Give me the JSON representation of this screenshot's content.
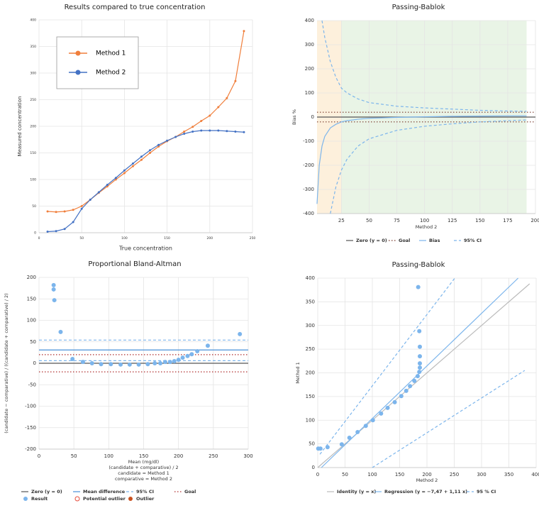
{
  "chart_data": [
    {
      "type": "line",
      "title": "Results compared to true concentration",
      "xlabel": "True concentration",
      "ylabel": "Measured concentration",
      "xlim": [
        0,
        250
      ],
      "ylim": [
        0,
        400
      ],
      "xticks": [
        0,
        50,
        100,
        150,
        200,
        250
      ],
      "yticks": [
        0,
        50,
        100,
        150,
        200,
        250,
        300,
        350,
        400
      ],
      "grid": true,
      "legend": "upper left",
      "reference_lines": [],
      "series": [
        {
          "name": "Method 1",
          "type": "line",
          "color": "#f07f3c",
          "style": "solid",
          "markers": true,
          "lines": [
            {
              "x": [
                10,
                20,
                30,
                40,
                50,
                60,
                70,
                80,
                90,
                100,
                110,
                120,
                130,
                140,
                150,
                160,
                170,
                180,
                190,
                200,
                210,
                220,
                230,
                240
              ],
              "values": [
                40,
                39,
                40,
                43,
                50,
                62,
                75,
                87,
                100,
                112,
                125,
                137,
                150,
                162,
                172,
                180,
                190,
                199,
                210,
                220,
                236,
                253,
                285,
                379
              ]
            }
          ]
        },
        {
          "name": "Method 2",
          "type": "line",
          "color": "#4472c4",
          "style": "solid",
          "markers": true,
          "lines": [
            {
              "x": [
                10,
                20,
                30,
                40,
                50,
                60,
                70,
                80,
                90,
                100,
                110,
                120,
                130,
                140,
                150,
                160,
                170,
                180,
                190,
                200,
                210,
                220,
                230,
                240
              ],
              "values": [
                2,
                3,
                7,
                20,
                45,
                62,
                76,
                90,
                103,
                117,
                130,
                143,
                155,
                165,
                173,
                180,
                186,
                190,
                192,
                192,
                192,
                191,
                190,
                189
              ]
            }
          ]
        }
      ]
    },
    {
      "type": "line",
      "title": "Passing-Bablok",
      "xlabel": "Method 2",
      "ylabel": "Bias %",
      "xlim": [
        3,
        200
      ],
      "ylim": [
        -400,
        400
      ],
      "xticks": [
        25,
        50,
        75,
        100,
        125,
        150,
        175,
        200
      ],
      "yticks": [
        -400,
        -300,
        -200,
        -100,
        0,
        100,
        200,
        300,
        400
      ],
      "grid": true,
      "legend": "bottom",
      "bands": [
        {
          "from": 3,
          "to": 25,
          "color": "#fdf0dc"
        },
        {
          "from": 25,
          "to": 192,
          "color": "#e9f4e6"
        }
      ],
      "reference_lines": [
        {
          "name": "Zero (y = 0)",
          "color": "#555555",
          "style": "solid",
          "values": [
            0
          ]
        },
        {
          "name": "Goal",
          "color": "#7a3b2e",
          "style": "dotted",
          "values": [
            20,
            -20
          ]
        }
      ],
      "series": [
        {
          "name": "Bias",
          "type": "line",
          "color": "#7cb5ec",
          "style": "solid",
          "lines": [
            {
              "x": [
                3,
                5,
                7.5,
                10,
                15,
                20,
                25,
                30,
                40,
                50,
                75,
                100,
                125,
                150,
                175,
                192
              ],
              "values": [
                -360,
                -200,
                -120,
                -80,
                -45,
                -30,
                -20,
                -15,
                -9,
                -5,
                -1,
                1,
                3,
                4,
                5,
                5
              ]
            }
          ]
        },
        {
          "name": "95% CI",
          "type": "line",
          "color": "#7cb5ec",
          "style": "dashed",
          "lines": [
            {
              "x": [
                7.5,
                10,
                15,
                20,
                25,
                30,
                40,
                50,
                75,
                100,
                125,
                150,
                175,
                192
              ],
              "values": [
                400,
                330,
                230,
                165,
                120,
                100,
                75,
                60,
                45,
                38,
                33,
                28,
                25,
                24
              ]
            },
            {
              "x": [
                15,
                20,
                25,
                30,
                40,
                50,
                75,
                100,
                125,
                150,
                175,
                192
              ],
              "values": [
                -400,
                -290,
                -220,
                -175,
                -120,
                -90,
                -55,
                -38,
                -28,
                -20,
                -15,
                -12
              ]
            }
          ]
        }
      ]
    },
    {
      "type": "scatter",
      "title": "Proportional Bland-Altman",
      "xlabel": [
        "Mean (mg/dl)",
        "(candidate + comparative) / 2",
        "candidate = Method 1",
        "comparative = Method 2"
      ],
      "ylabel": "(candidate − comparative) / ((candidate + comparative) / 2)",
      "xlim": [
        0,
        300
      ],
      "ylim": [
        -200,
        200
      ],
      "xticks": [
        0,
        50,
        100,
        150,
        200,
        250,
        300
      ],
      "yticks": [
        -200,
        -150,
        -100,
        -50,
        0,
        50,
        100,
        150,
        200
      ],
      "grid": true,
      "legend": "bottom",
      "reference_lines": [
        {
          "name": "Zero (y = 0)",
          "color": "#555555",
          "style": "solid",
          "values": [
            0
          ]
        },
        {
          "name": "Mean difference",
          "color": "#4a90d9",
          "style": "solid",
          "values": [
            31
          ]
        },
        {
          "name": "95% CI",
          "color": "#7cb5ec",
          "style": "dashed",
          "values": [
            54,
            6
          ]
        },
        {
          "name": "Goal",
          "color": "#b03030",
          "style": "dotted",
          "values": [
            20,
            -20
          ]
        }
      ],
      "series": [
        {
          "name": "Result",
          "type": "scatter",
          "color": "#7cb5ec",
          "x": [
            21,
            21,
            22,
            31,
            48,
            63,
            76,
            89,
            103,
            117,
            130,
            143,
            156,
            166,
            174,
            181,
            188,
            194,
            200,
            206,
            213,
            219,
            227,
            242,
            288
          ],
          "values": [
            182,
            172,
            147,
            73,
            10,
            3,
            0,
            -2,
            -2,
            -3,
            -3,
            -3,
            -2,
            0,
            0,
            3,
            3,
            5,
            8,
            13,
            17,
            21,
            28,
            41,
            68
          ]
        },
        {
          "name": "Potential outlier",
          "type": "scatter",
          "color": "#e74c3c",
          "hollow": true,
          "x": [],
          "values": []
        },
        {
          "name": "Outlier",
          "type": "scatter",
          "color": "#c8501e",
          "x": [],
          "values": []
        }
      ]
    },
    {
      "type": "scatter",
      "title": "Passing-Bablok",
      "xlabel": "Method 2",
      "ylabel": "Method 1",
      "xlim": [
        0,
        400
      ],
      "ylim": [
        0,
        400
      ],
      "xticks": [
        0,
        50,
        100,
        150,
        200,
        250,
        300,
        350,
        400
      ],
      "yticks": [
        0,
        50,
        100,
        150,
        200,
        250,
        300,
        350,
        400
      ],
      "grid": true,
      "legend": "bottom",
      "reference_lines": [],
      "series": [
        {
          "name": "Identity (y = x)",
          "type": "line",
          "color": "#bbbbbb",
          "style": "solid",
          "lines": [
            {
              "x": [
                0,
                388
              ],
              "values": [
                0,
                388
              ]
            }
          ]
        },
        {
          "name": "Regression (y = −7,47 + 1,11 x)",
          "type": "line",
          "color": "#7cb5ec",
          "style": "solid",
          "lines": [
            {
              "x": [
                6.7,
                367
              ],
              "values": [
                0,
                400
              ]
            }
          ]
        },
        {
          "name": "95 % CI",
          "type": "line",
          "color": "#7cb5ec",
          "style": "dashed",
          "lines": [
            {
              "x": [
                4,
                251
              ],
              "values": [
                28,
                400
              ]
            },
            {
              "x": [
                100,
                379
              ],
              "values": [
                0,
                205
              ]
            }
          ]
        },
        {
          "name": "Result",
          "type": "scatter",
          "color": "#7cb5ec",
          "nolegend": true,
          "x": [
            1,
            5,
            18,
            44,
            58,
            73,
            88,
            101,
            116,
            128,
            141,
            153,
            162,
            169,
            177,
            183,
            186,
            187,
            187,
            187,
            187,
            186,
            184
          ],
          "values": [
            40,
            40,
            43,
            49,
            63,
            75,
            88,
            100,
            114,
            126,
            138,
            151,
            162,
            172,
            183,
            193,
            202,
            211,
            220,
            235,
            255,
            288,
            381
          ]
        }
      ]
    }
  ]
}
